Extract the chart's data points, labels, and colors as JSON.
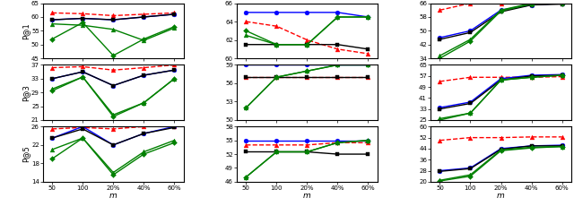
{
  "x_labels": [
    "50",
    "100",
    "20%",
    "40%",
    "60%"
  ],
  "x_vals": [
    0,
    1,
    2,
    3,
    4
  ],
  "xlabel": "m",
  "col0": {
    "row0": {
      "ylim": [
        45,
        65
      ],
      "yticks": [
        45,
        50,
        55,
        60,
        65
      ],
      "ylabel": "P@1",
      "red": [
        61.5,
        61.2,
        60.5,
        61.0,
        61.5
      ],
      "blue": [
        59.0,
        59.5,
        59.0,
        60.0,
        61.0
      ],
      "black": [
        59.0,
        59.5,
        59.0,
        60.0,
        61.0
      ],
      "green_tri": [
        57.5,
        57.0,
        55.5,
        51.5,
        56.0
      ],
      "green_dia": [
        52.0,
        58.0,
        46.0,
        52.0,
        56.5
      ]
    },
    "row1": {
      "ylim": [
        21,
        37
      ],
      "yticks": [
        21,
        25,
        29,
        33,
        37
      ],
      "ylabel": "P@3",
      "red": [
        36.2,
        36.5,
        35.5,
        36.2,
        37.0
      ],
      "blue": [
        33.0,
        35.0,
        31.0,
        34.0,
        35.5
      ],
      "black": [
        33.0,
        35.0,
        31.0,
        34.0,
        35.5
      ],
      "green_tri": [
        30.0,
        33.5,
        22.5,
        26.0,
        33.0
      ],
      "green_dia": [
        29.5,
        33.5,
        22.0,
        26.0,
        33.0
      ]
    },
    "row2": {
      "ylim": [
        14,
        26
      ],
      "yticks": [
        14,
        18,
        22,
        26
      ],
      "ylabel": "P@5",
      "red": [
        25.5,
        25.8,
        25.5,
        26.0,
        26.0
      ],
      "blue": [
        23.5,
        26.0,
        22.0,
        24.5,
        26.0
      ],
      "black": [
        23.5,
        25.5,
        22.0,
        24.5,
        25.8
      ],
      "green_tri": [
        21.0,
        23.5,
        16.0,
        20.5,
        23.0
      ],
      "green_dia": [
        19.0,
        23.5,
        15.5,
        20.0,
        22.5
      ]
    }
  },
  "col1": {
    "row0": {
      "ylim": [
        60,
        66
      ],
      "yticks": [
        60,
        62,
        64,
        66
      ],
      "ylabel": "",
      "red": [
        64.0,
        63.5,
        62.0,
        61.0,
        60.5
      ],
      "blue": [
        65.0,
        65.0,
        65.0,
        65.0,
        64.5
      ],
      "black": [
        61.5,
        61.5,
        61.5,
        61.5,
        61.0
      ],
      "green_tri": [
        62.5,
        61.5,
        61.5,
        64.5,
        64.5
      ],
      "green_dia": [
        63.0,
        61.5,
        61.5,
        64.5,
        64.5
      ]
    },
    "row1": {
      "ylim": [
        50,
        59
      ],
      "yticks": [
        50,
        53,
        56,
        59
      ],
      "ylabel": "",
      "red": [
        57.0,
        57.0,
        57.0,
        57.0,
        57.0
      ],
      "blue": [
        59.0,
        59.0,
        59.0,
        59.0,
        59.0
      ],
      "black": [
        57.0,
        57.0,
        57.0,
        57.0,
        57.0
      ],
      "green_tri": [
        52.0,
        57.0,
        58.0,
        59.0,
        59.0
      ],
      "green_dia": [
        52.0,
        57.0,
        58.0,
        59.0,
        59.0
      ]
    },
    "row2": {
      "ylim": [
        46,
        58
      ],
      "yticks": [
        46,
        49,
        52,
        55,
        58
      ],
      "ylabel": "",
      "red": [
        54.0,
        54.0,
        54.0,
        54.5,
        54.5
      ],
      "blue": [
        55.0,
        55.0,
        55.0,
        55.0,
        55.0
      ],
      "black": [
        52.5,
        52.5,
        52.5,
        52.0,
        52.0
      ],
      "green_tri": [
        47.0,
        52.5,
        52.5,
        54.5,
        55.0
      ],
      "green_dia": [
        47.0,
        52.5,
        52.5,
        54.5,
        55.0
      ]
    }
  },
  "col2": {
    "row0": {
      "ylim": [
        34,
        66
      ],
      "yticks": [
        34,
        42,
        50,
        58,
        66
      ],
      "ylabel": "",
      "red": [
        62.0,
        66.0,
        66.0,
        66.5,
        67.0
      ],
      "blue": [
        46.0,
        50.0,
        62.0,
        65.0,
        66.0
      ],
      "black": [
        45.0,
        49.0,
        61.0,
        65.0,
        65.5
      ],
      "green_tri": [
        35.5,
        45.0,
        62.0,
        66.0,
        66.5
      ],
      "green_dia": [
        34.0,
        44.0,
        61.5,
        65.5,
        66.0
      ]
    },
    "row1": {
      "ylim": [
        25,
        65
      ],
      "yticks": [
        25,
        33,
        41,
        49,
        57,
        65
      ],
      "ylabel": "",
      "red": [
        53.0,
        56.0,
        56.0,
        56.0,
        56.5
      ],
      "blue": [
        34.0,
        38.0,
        55.0,
        57.5,
        58.0
      ],
      "black": [
        33.0,
        37.0,
        54.0,
        57.0,
        57.5
      ],
      "green_tri": [
        26.0,
        30.0,
        54.0,
        56.0,
        57.5
      ],
      "green_dia": [
        25.0,
        30.0,
        54.0,
        56.0,
        57.5
      ]
    },
    "row2": {
      "ylim": [
        20,
        60
      ],
      "yticks": [
        20,
        28,
        36,
        44,
        52,
        60
      ],
      "ylabel": "",
      "red": [
        50.0,
        52.0,
        52.0,
        52.5,
        52.5
      ],
      "blue": [
        28.0,
        30.0,
        44.0,
        46.0,
        46.5
      ],
      "black": [
        27.5,
        29.5,
        43.5,
        46.0,
        46.0
      ],
      "green_tri": [
        21.0,
        25.0,
        43.0,
        45.0,
        45.5
      ],
      "green_dia": [
        20.5,
        24.0,
        42.5,
        44.5,
        45.5
      ]
    }
  }
}
